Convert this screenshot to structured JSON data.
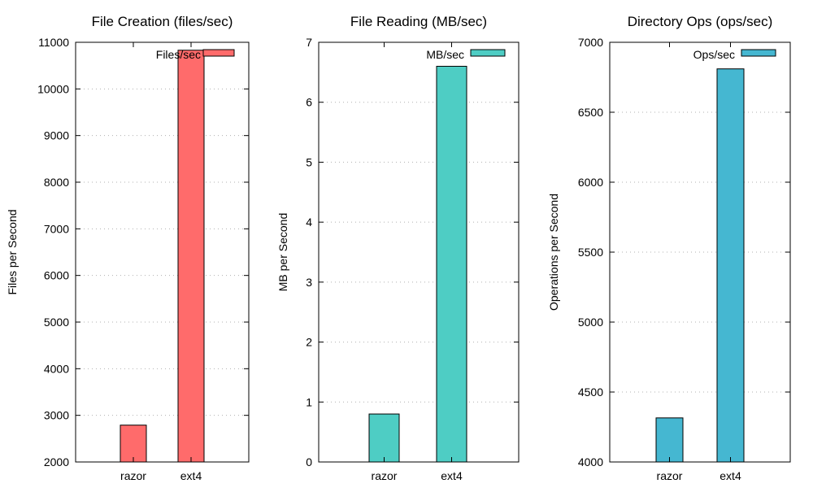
{
  "chart_data": [
    {
      "type": "bar",
      "title": "File Creation (files/sec)",
      "ylabel": "Files per Second",
      "categories": [
        "razor",
        "ext4"
      ],
      "series": [
        {
          "name": "Files/sec",
          "values": [
            2790,
            10830
          ]
        }
      ],
      "color": "#ff6b6b",
      "ylim": [
        2000,
        11000
      ],
      "yticks": [
        2000,
        3000,
        4000,
        5000,
        6000,
        7000,
        8000,
        9000,
        10000,
        11000
      ],
      "grid": true,
      "legend": "top-right"
    },
    {
      "type": "bar",
      "title": "File Reading (MB/sec)",
      "ylabel": "MB per Second",
      "categories": [
        "razor",
        "ext4"
      ],
      "series": [
        {
          "name": "MB/sec",
          "values": [
            0.8,
            6.6
          ]
        }
      ],
      "color": "#4ecdc4",
      "ylim": [
        0,
        7
      ],
      "yticks": [
        0,
        1,
        2,
        3,
        4,
        5,
        6,
        7
      ],
      "grid": true,
      "legend": "top-right"
    },
    {
      "type": "bar",
      "title": "Directory Ops (ops/sec)",
      "ylabel": "Operations per Second",
      "categories": [
        "razor",
        "ext4"
      ],
      "series": [
        {
          "name": "Ops/sec",
          "values": [
            4315,
            6810
          ]
        }
      ],
      "color": "#45b7d1",
      "ylim": [
        4000,
        7000
      ],
      "yticks": [
        4000,
        4500,
        5000,
        5500,
        6000,
        6500,
        7000
      ],
      "grid": true,
      "legend": "top-right"
    }
  ]
}
